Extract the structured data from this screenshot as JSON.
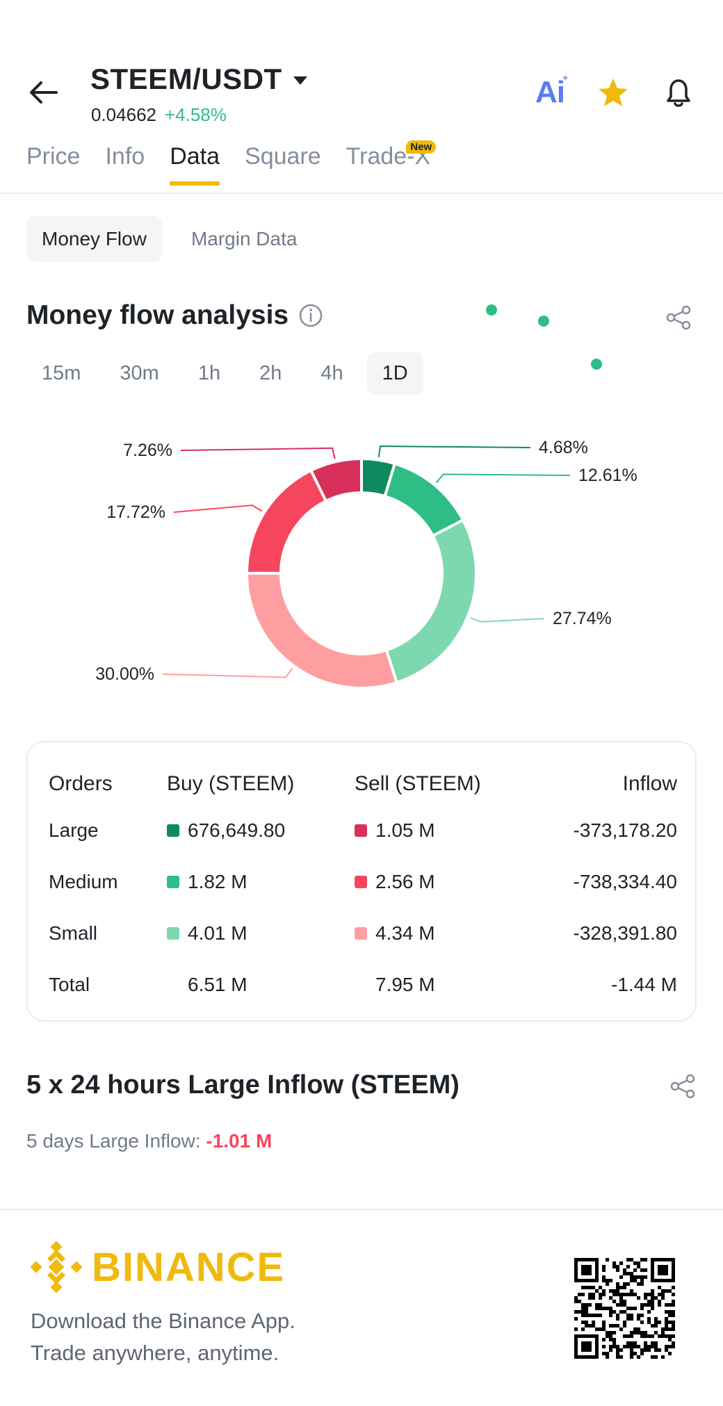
{
  "header": {
    "pair": "STEEM/USDT",
    "price": "0.04662",
    "change": "+4.58%",
    "ai_label": "Ai"
  },
  "tabs": [
    {
      "label": "Price"
    },
    {
      "label": "Info"
    },
    {
      "label": "Data",
      "active": true
    },
    {
      "label": "Square"
    },
    {
      "label": "Trade-X",
      "badge": "New"
    }
  ],
  "subtabs": [
    {
      "label": "Money Flow",
      "active": true
    },
    {
      "label": "Margin Data"
    }
  ],
  "money_flow": {
    "title": "Money flow analysis",
    "timeframes": [
      "15m",
      "30m",
      "1h",
      "2h",
      "4h",
      "1D"
    ],
    "active_timeframe": "1D"
  },
  "chart_data": {
    "type": "pie",
    "donut": true,
    "slices": [
      {
        "label": "4.68%",
        "value": 4.68,
        "color": "#0e8a5f"
      },
      {
        "label": "12.61%",
        "value": 12.61,
        "color": "#2ebd85"
      },
      {
        "label": "27.74%",
        "value": 27.74,
        "color": "#7dd8b0"
      },
      {
        "label": "30.00%",
        "value": 30.0,
        "color": "#ff9ea0"
      },
      {
        "label": "17.72%",
        "value": 17.72,
        "color": "#f6465d"
      },
      {
        "label": "7.26%",
        "value": 7.26,
        "color": "#d8305b"
      }
    ]
  },
  "orders": {
    "headers": {
      "orders": "Orders",
      "buy": "Buy (STEEM)",
      "sell": "Sell (STEEM)",
      "inflow": "Inflow"
    },
    "rows": [
      {
        "label": "Large",
        "buy": "676,649.80",
        "sell": "1.05 M",
        "inflow": "-373,178.20",
        "buy_color": "#0e8a5f",
        "sell_color": "#d8305b"
      },
      {
        "label": "Medium",
        "buy": "1.82 M",
        "sell": "2.56 M",
        "inflow": "-738,334.40",
        "buy_color": "#2ebd85",
        "sell_color": "#f6465d"
      },
      {
        "label": "Small",
        "buy": "4.01 M",
        "sell": "4.34 M",
        "inflow": "-328,391.80",
        "buy_color": "#7dd8b0",
        "sell_color": "#ff9ea0"
      }
    ],
    "total": {
      "label": "Total",
      "buy": "6.51 M",
      "sell": "7.95 M",
      "inflow": "-1.44 M"
    }
  },
  "large_inflow": {
    "title": "5 x 24 hours Large Inflow (STEEM)",
    "sub_label": "5 days Large Inflow:",
    "sub_value": "-1.01 M"
  },
  "footer": {
    "brand": "BINANCE",
    "line1": "Download the Binance App.",
    "line2": "Trade anywhere, anytime."
  },
  "icons": {
    "back": "arrow-left-icon",
    "caret": "caret-down-icon",
    "favorite": "star-icon",
    "alert": "bell-icon",
    "info": "info-icon",
    "share": "share-icon"
  },
  "colors": {
    "accent": "#f0b90b",
    "up": "#2ebd85",
    "down": "#f6465d"
  }
}
